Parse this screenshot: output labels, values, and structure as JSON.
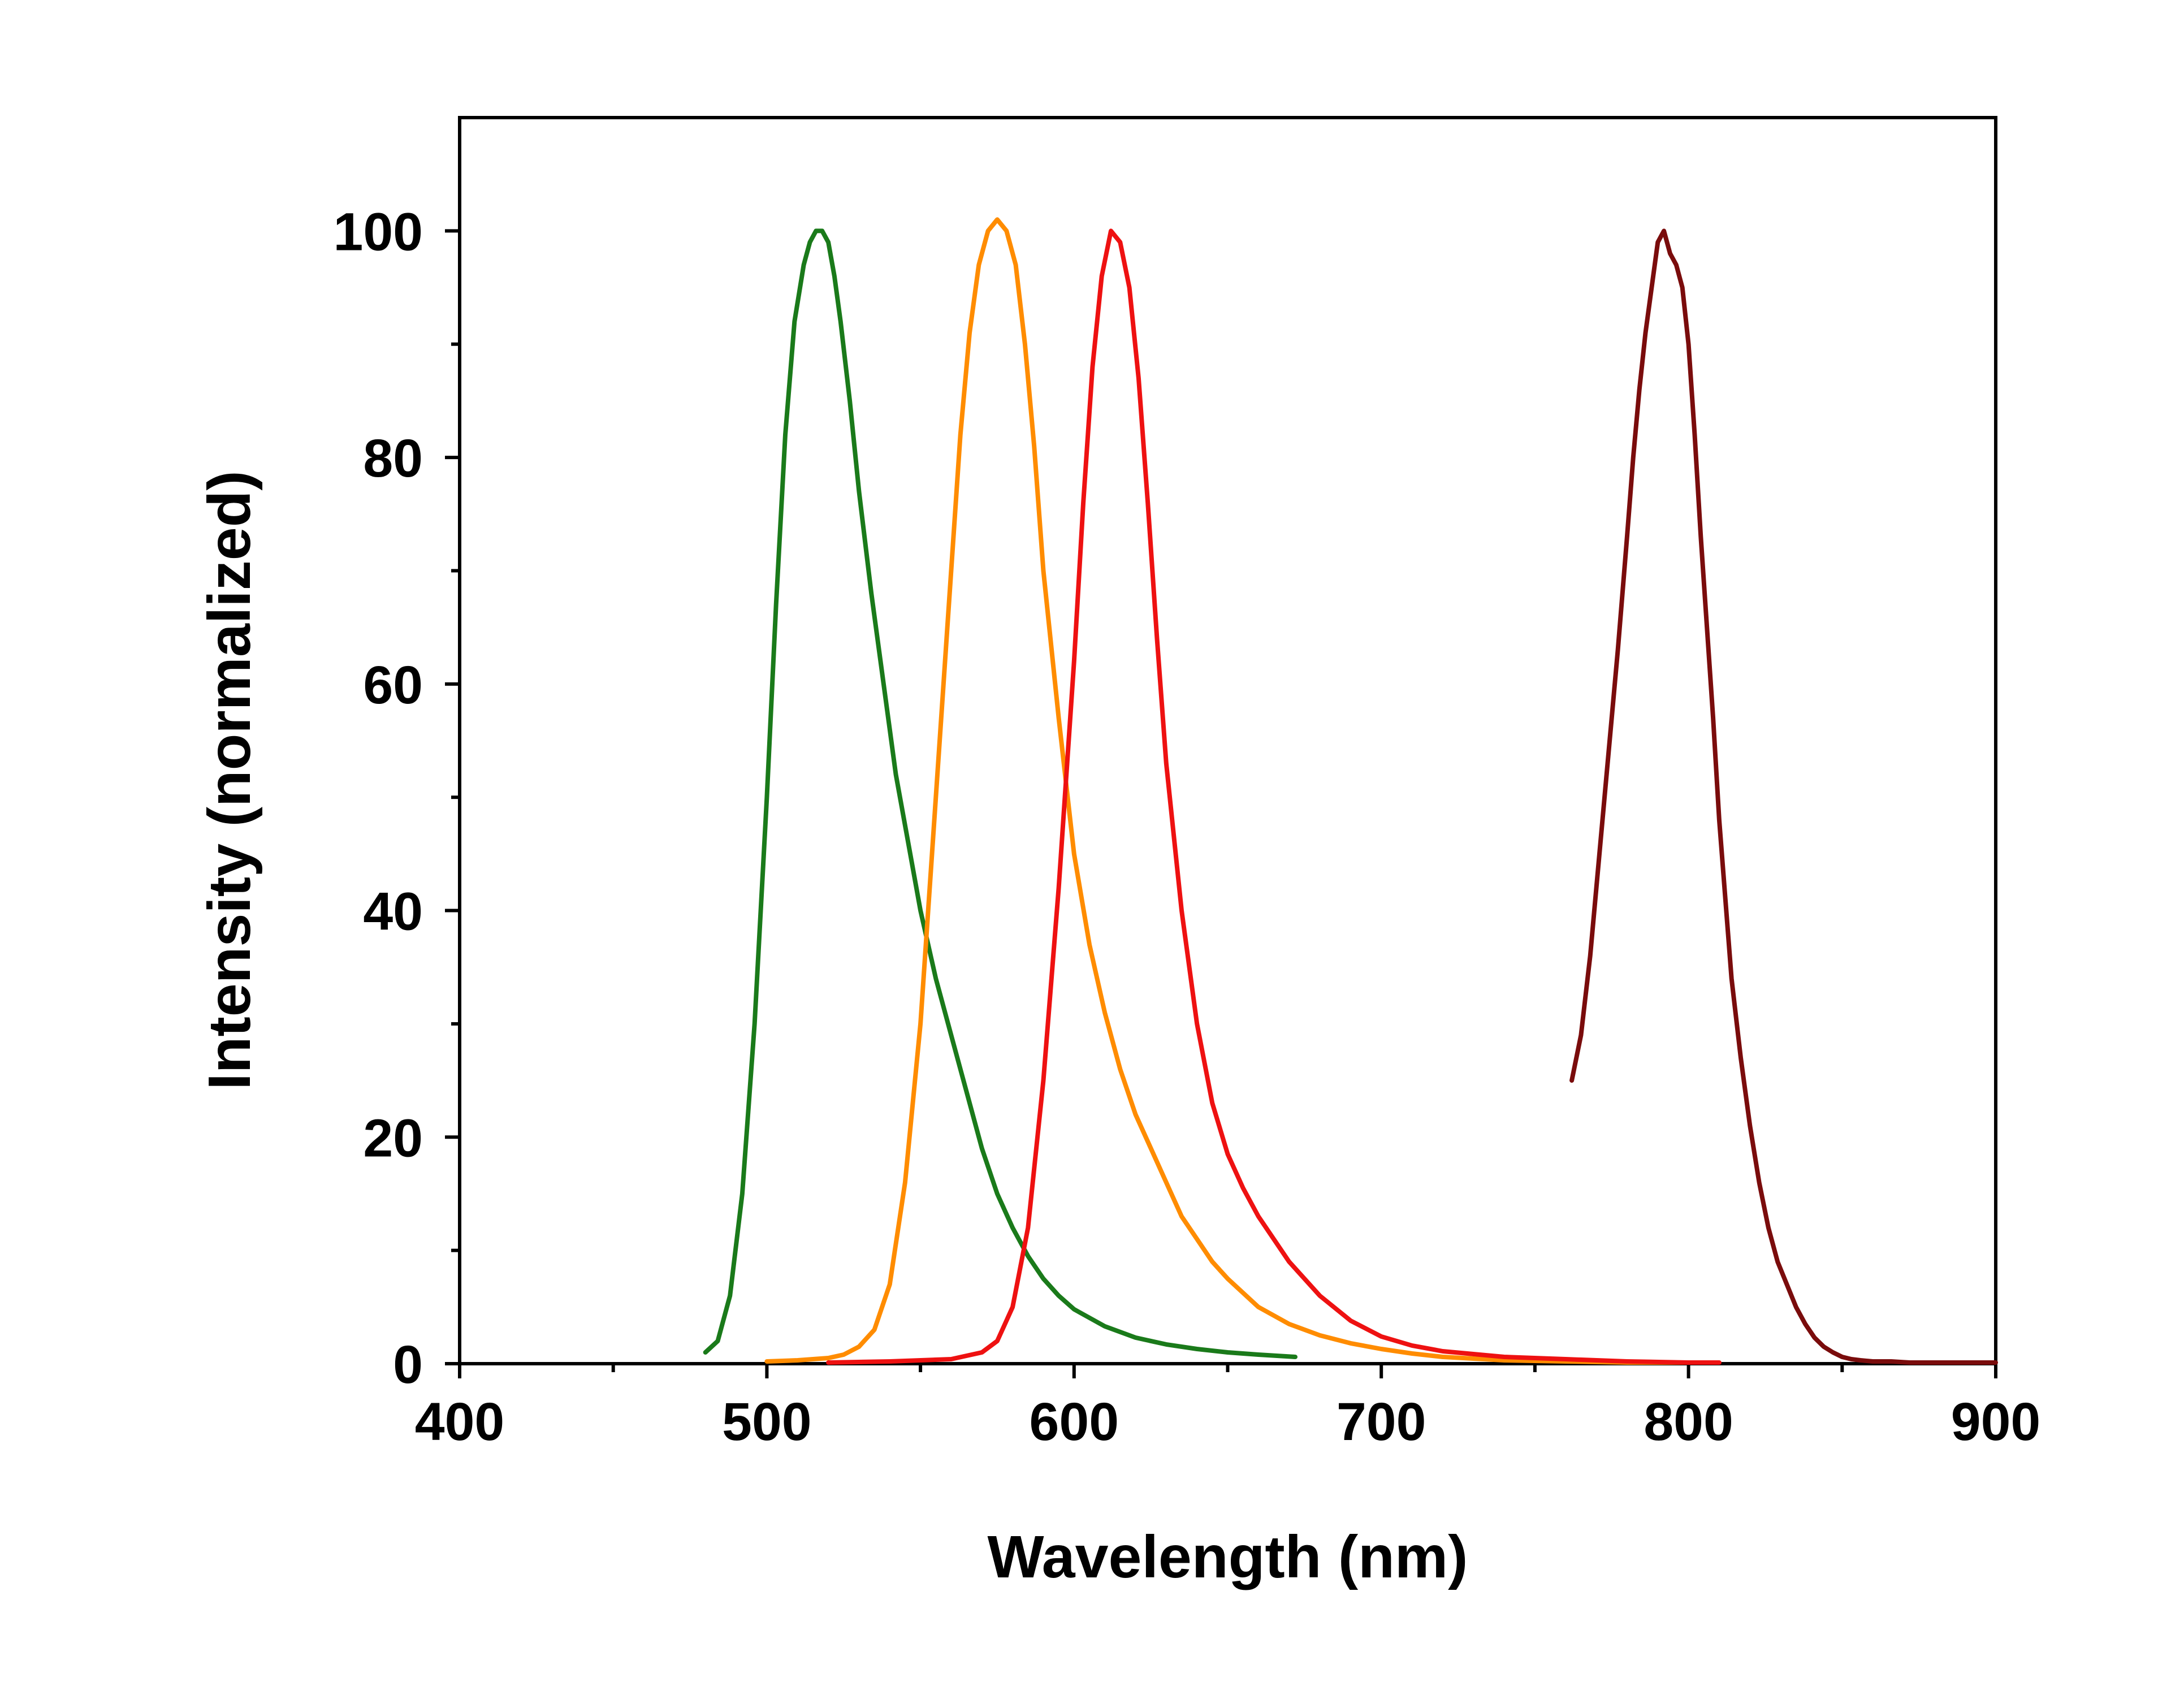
{
  "chart_data": {
    "type": "line",
    "title": "",
    "xlabel": "Wavelength (nm)",
    "ylabel": "Intensity (normalized)",
    "xlim": [
      400,
      900
    ],
    "ylim": [
      0,
      110
    ],
    "x_ticks": [
      400,
      500,
      600,
      700,
      800,
      900
    ],
    "x_minor_ticks": [
      450,
      550,
      650,
      750,
      850
    ],
    "y_ticks": [
      0,
      20,
      40,
      60,
      80,
      100
    ],
    "y_minor_ticks": [
      10,
      30,
      50,
      70,
      90
    ],
    "grid": false,
    "legend": "none",
    "series": [
      {
        "color": "#1a7a1a",
        "x": [
          480,
          484,
          488,
          492,
          496,
          500,
          503,
          506,
          509,
          512,
          514,
          516,
          518,
          520,
          522,
          524,
          527,
          530,
          534,
          538,
          542,
          546,
          550,
          555,
          560,
          565,
          570,
          575,
          580,
          585,
          590,
          595,
          600,
          610,
          620,
          630,
          640,
          650,
          660,
          672
        ],
        "values": [
          1,
          2,
          6,
          15,
          30,
          50,
          67,
          82,
          92,
          97,
          99,
          100,
          100,
          99,
          96,
          92,
          85,
          77,
          68,
          60,
          52,
          46,
          40,
          34,
          29,
          24,
          19,
          15,
          12,
          9.5,
          7.5,
          6,
          4.8,
          3.3,
          2.3,
          1.7,
          1.3,
          1.0,
          0.8,
          0.6
        ]
      },
      {
        "color": "#ff8c00",
        "x": [
          500,
          510,
          520,
          525,
          530,
          535,
          540,
          545,
          550,
          555,
          560,
          563,
          566,
          569,
          572,
          575,
          578,
          581,
          584,
          587,
          590,
          595,
          600,
          605,
          610,
          615,
          620,
          625,
          630,
          635,
          640,
          645,
          650,
          660,
          670,
          680,
          690,
          700,
          710,
          720,
          740,
          760,
          780,
          800
        ],
        "values": [
          0.2,
          0.3,
          0.5,
          0.8,
          1.5,
          3,
          7,
          16,
          30,
          50,
          70,
          82,
          91,
          97,
          100,
          101,
          100,
          97,
          90,
          81,
          70,
          57,
          45,
          37,
          31,
          26,
          22,
          19,
          16,
          13,
          11,
          9,
          7.5,
          5,
          3.5,
          2.5,
          1.8,
          1.3,
          0.9,
          0.6,
          0.3,
          0.2,
          0.1,
          0.1
        ]
      },
      {
        "color": "#ee1111",
        "x": [
          520,
          540,
          560,
          570,
          575,
          580,
          585,
          590,
          595,
          600,
          603,
          606,
          609,
          612,
          615,
          618,
          621,
          624,
          627,
          630,
          635,
          640,
          645,
          650,
          655,
          660,
          665,
          670,
          680,
          690,
          700,
          710,
          720,
          740,
          760,
          780,
          800,
          810
        ],
        "values": [
          0.1,
          0.2,
          0.4,
          1,
          2,
          5,
          12,
          25,
          42,
          62,
          76,
          88,
          96,
          100,
          99,
          95,
          87,
          76,
          64,
          53,
          40,
          30,
          23,
          18.5,
          15.5,
          13,
          11,
          9,
          6,
          3.8,
          2.4,
          1.6,
          1.1,
          0.6,
          0.4,
          0.2,
          0.1,
          0.1
        ]
      },
      {
        "color": "#7a0c0c",
        "x": [
          762,
          765,
          768,
          771,
          774,
          777,
          780,
          782,
          784,
          786,
          788,
          790,
          792,
          794,
          796,
          798,
          800,
          802,
          804,
          806,
          808,
          810,
          812,
          814,
          817,
          820,
          823,
          826,
          829,
          832,
          835,
          838,
          841,
          844,
          847,
          850,
          853,
          856,
          860,
          866,
          872,
          880,
          890,
          900
        ],
        "values": [
          25,
          29,
          36,
          45,
          54,
          63,
          73,
          80,
          86,
          91,
          95,
          99,
          100,
          98,
          97,
          95,
          90,
          82,
          73,
          65,
          57,
          48,
          41,
          34,
          27,
          21,
          16,
          12,
          9,
          7,
          5,
          3.5,
          2.3,
          1.5,
          1,
          0.6,
          0.4,
          0.3,
          0.2,
          0.2,
          0.1,
          0.1,
          0.1,
          0.1
        ]
      }
    ]
  }
}
